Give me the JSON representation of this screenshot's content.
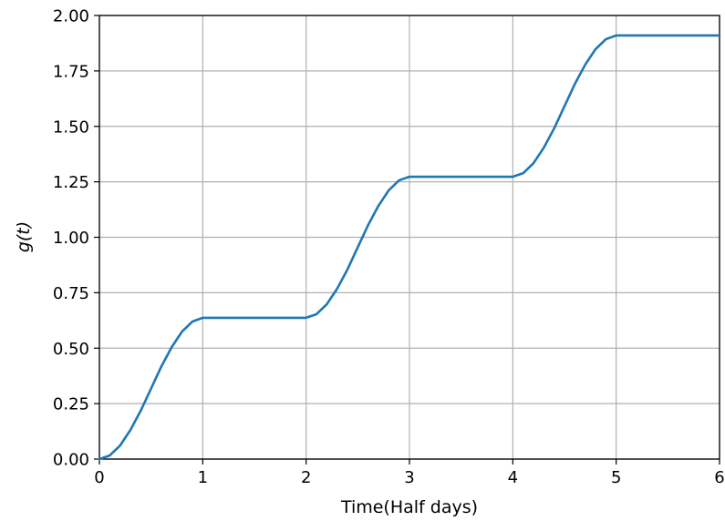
{
  "chart_data": {
    "type": "line",
    "xlabel": "Time(Half days)",
    "ylabel": "g(t)",
    "xlim": [
      0,
      6
    ],
    "ylim": [
      0,
      2
    ],
    "xticks": [
      "0",
      "1",
      "2",
      "3",
      "4",
      "5",
      "6"
    ],
    "yticks": [
      "0.00",
      "0.25",
      "0.50",
      "0.75",
      "1.00",
      "1.25",
      "1.50",
      "1.75",
      "2.00"
    ],
    "grid": true,
    "line_color": "#1f77b4",
    "series": [
      {
        "x": [
          0,
          0.1,
          0.2,
          0.3,
          0.4,
          0.5,
          0.6,
          0.7,
          0.8,
          0.9,
          1.0,
          1.5,
          2.0,
          2.1,
          2.2,
          2.3,
          2.4,
          2.5,
          2.6,
          2.7,
          2.8,
          2.9,
          3.0,
          3.5,
          4.0,
          4.1,
          4.2,
          4.3,
          4.4,
          4.5,
          4.6,
          4.7,
          4.8,
          4.9,
          5.0,
          5.5,
          6.0
        ],
        "y": [
          0,
          0.016,
          0.061,
          0.131,
          0.218,
          0.318,
          0.418,
          0.505,
          0.575,
          0.62,
          0.637,
          0.637,
          0.637,
          0.653,
          0.698,
          0.768,
          0.855,
          0.955,
          1.055,
          1.142,
          1.212,
          1.257,
          1.273,
          1.273,
          1.273,
          1.289,
          1.334,
          1.404,
          1.491,
          1.591,
          1.691,
          1.778,
          1.848,
          1.893,
          1.91,
          1.91,
          1.91
        ]
      }
    ]
  }
}
